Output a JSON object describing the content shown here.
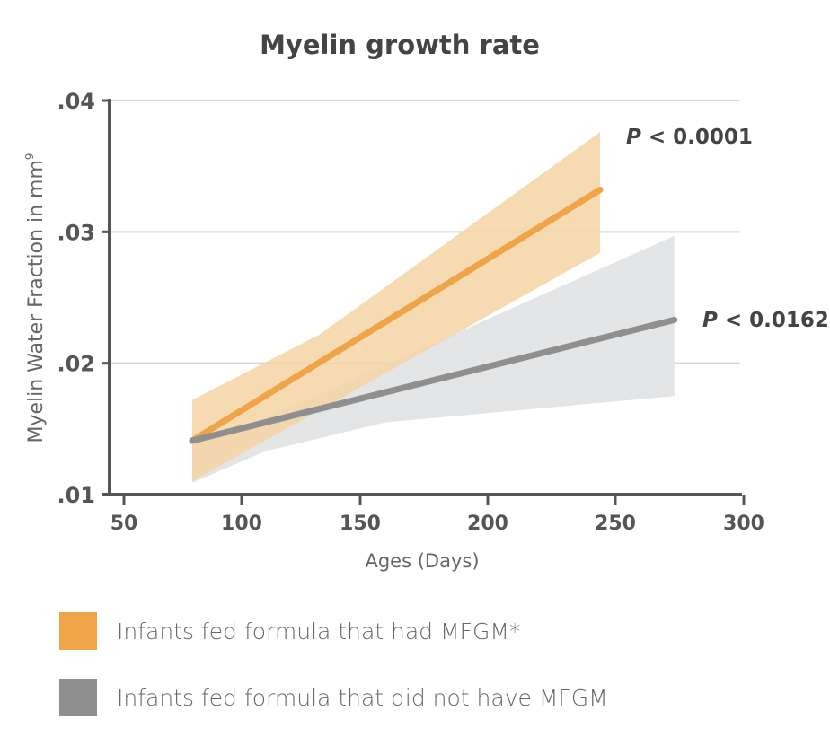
{
  "chart_data": {
    "type": "line",
    "title": "Myelin growth rate",
    "xlabel": "Ages (Days)",
    "ylabel": "Myelin Water Fraction in mm",
    "ylabel_superscript": "9",
    "xlim": [
      44,
      300
    ],
    "ylim": [
      0.01,
      0.04
    ],
    "xticks": [
      50,
      100,
      150,
      200,
      250,
      300
    ],
    "xtick_labels": [
      "50",
      "100",
      "150",
      "200",
      "250",
      "300"
    ],
    "yticks": [
      0.01,
      0.02,
      0.03,
      0.04
    ],
    "ytick_labels": [
      ".01",
      ".02",
      ".03",
      ".04"
    ],
    "grid": "horizontal",
    "legend_placement": "bottom",
    "series": [
      {
        "name": "Infants fed formula that had MFGM*",
        "color": "#eea447",
        "band_color": "#f5d3a3",
        "line": [
          [
            79,
            0.0141
          ],
          [
            244,
            0.0332
          ]
        ],
        "band_upper": [
          [
            79,
            0.0172
          ],
          [
            133,
            0.0222
          ],
          [
            244,
            0.0376
          ]
        ],
        "band_lower": [
          [
            244,
            0.0284
          ],
          [
            79,
            0.011
          ]
        ],
        "annotation": "< 0.0001",
        "annotation_prefix": "P"
      },
      {
        "name": "Infants fed formula that did not have MFGM",
        "color": "#8f8f8f",
        "band_color": "#e4e5e7",
        "line": [
          [
            79,
            0.0141
          ],
          [
            273,
            0.0233
          ]
        ],
        "band_upper": [
          [
            79,
            0.0141
          ],
          [
            110,
            0.0158
          ],
          [
            273,
            0.0297
          ]
        ],
        "band_lower": [
          [
            273,
            0.0175
          ],
          [
            160,
            0.0155
          ],
          [
            110,
            0.0133
          ],
          [
            79,
            0.0109
          ]
        ],
        "annotation": "< 0.0162",
        "annotation_prefix": "P"
      }
    ]
  }
}
